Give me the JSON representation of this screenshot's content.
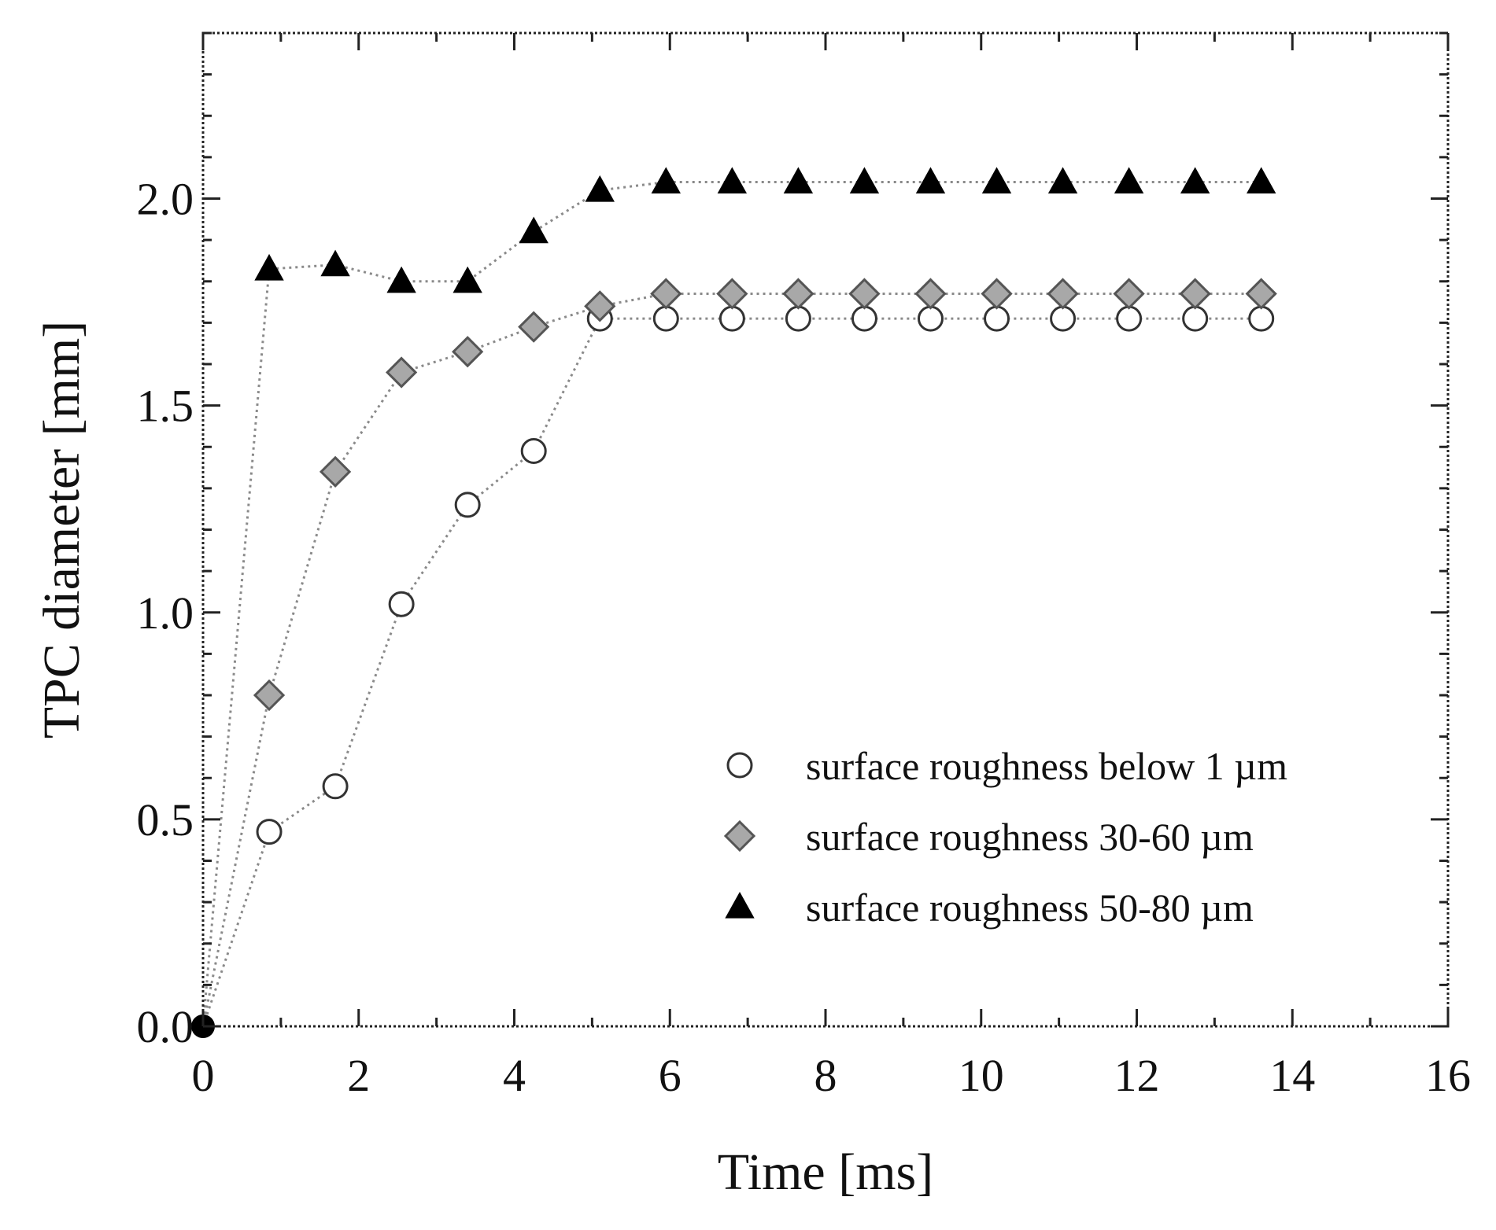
{
  "chart_data": {
    "type": "scatter",
    "title": "",
    "xlabel": "Time [ms]",
    "ylabel": "TPC diameter [mm]",
    "xlim": [
      0,
      16
    ],
    "ylim": [
      0,
      2.4
    ],
    "xticks": [
      0,
      2,
      4,
      6,
      8,
      10,
      12,
      14,
      16
    ],
    "xtick_labels": [
      "0",
      "2",
      "4",
      "6",
      "8",
      "10",
      "12",
      "14",
      "16"
    ],
    "yticks": [
      0,
      0.5,
      1.0,
      1.5,
      2.0
    ],
    "ytick_labels": [
      "0.0",
      "0.5",
      "1.0",
      "1.5",
      "2.0"
    ],
    "grid": false,
    "legend_position": "bottom-right",
    "origin_point": {
      "x": 0,
      "y": 0,
      "color": "#000000"
    },
    "series": [
      {
        "name": "surface roughness below 1 µm",
        "marker": "circle",
        "fill": "#ffffff",
        "stroke": "#333333",
        "x": [
          0,
          0.85,
          1.7,
          2.55,
          3.4,
          4.25,
          5.1,
          5.95,
          6.8,
          7.65,
          8.5,
          9.35,
          10.2,
          11.05,
          11.9,
          12.75,
          13.6
        ],
        "y": [
          0,
          0.47,
          0.58,
          1.02,
          1.26,
          1.39,
          1.71,
          1.71,
          1.71,
          1.71,
          1.71,
          1.71,
          1.71,
          1.71,
          1.71,
          1.71,
          1.71
        ]
      },
      {
        "name": "surface roughness 30-60 µm",
        "marker": "diamond",
        "fill": "#a8a8a8",
        "stroke": "#555555",
        "x": [
          0,
          0.85,
          1.7,
          2.55,
          3.4,
          4.25,
          5.1,
          5.95,
          6.8,
          7.65,
          8.5,
          9.35,
          10.2,
          11.05,
          11.9,
          12.75,
          13.6
        ],
        "y": [
          0,
          0.8,
          1.34,
          1.58,
          1.63,
          1.69,
          1.74,
          1.77,
          1.77,
          1.77,
          1.77,
          1.77,
          1.77,
          1.77,
          1.77,
          1.77,
          1.77
        ]
      },
      {
        "name": "surface roughness 50-80 µm",
        "marker": "triangle",
        "fill": "#000000",
        "stroke": "#000000",
        "x": [
          0,
          0.85,
          1.7,
          2.55,
          3.4,
          4.25,
          5.1,
          5.95,
          6.8,
          7.65,
          8.5,
          9.35,
          10.2,
          11.05,
          11.9,
          12.75,
          13.6
        ],
        "y": [
          0,
          1.83,
          1.84,
          1.8,
          1.8,
          1.92,
          2.02,
          2.04,
          2.04,
          2.04,
          2.04,
          2.04,
          2.04,
          2.04,
          2.04,
          2.04,
          2.04
        ]
      }
    ]
  }
}
